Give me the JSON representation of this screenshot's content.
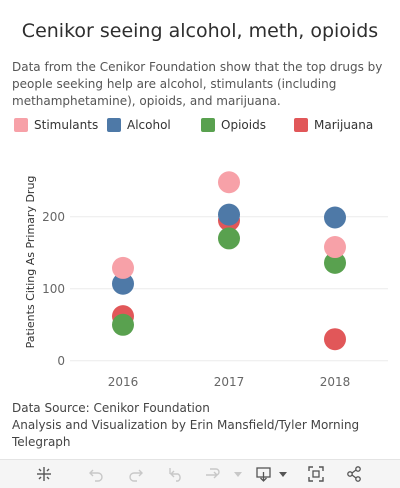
{
  "title": "Cenikor seeing alcohol, meth, opioids",
  "subtitle": "Data from the Cenikor Foundation show that the top drugs by people seeking help are alcohol, stimulants (including methamphetamine), opioids, and marijuana.",
  "legend": [
    {
      "label": "Stimulants",
      "color": "#f7a1a8"
    },
    {
      "label": "Alcohol",
      "color": "#4e79a7"
    },
    {
      "label": "Opioids",
      "color": "#59a14f"
    },
    {
      "label": "Marijuana",
      "color": "#e15759"
    }
  ],
  "footer": {
    "source": "Data Source: Cenikor Foundation",
    "credit": "Analysis and Visualization by Erin Mansfield/Tyler Morning Telegraph"
  },
  "toolbar": {
    "icons": [
      "tableau-logo-icon",
      "undo-icon",
      "redo-icon",
      "revert-icon",
      "refresh-icon",
      "dropdown-icon",
      "download-icon",
      "fullscreen-icon",
      "share-icon"
    ]
  },
  "chart_data": {
    "type": "scatter",
    "categories": [
      "2016",
      "2017",
      "2018"
    ],
    "ylabel": "Patients Citing As Primary Drug",
    "xlabel": "",
    "ylim": [
      -10,
      290
    ],
    "yticks": [
      0,
      100,
      200
    ],
    "grid": true,
    "series": [
      {
        "name": "Marijuana",
        "color": "#e15759",
        "values": [
          62,
          195,
          30
        ]
      },
      {
        "name": "Opioids",
        "color": "#59a14f",
        "values": [
          50,
          170,
          136
        ]
      },
      {
        "name": "Alcohol",
        "color": "#4e79a7",
        "values": [
          107,
          203,
          199
        ]
      },
      {
        "name": "Stimulants",
        "color": "#f7a1a8",
        "values": [
          129,
          248,
          158
        ]
      }
    ]
  }
}
